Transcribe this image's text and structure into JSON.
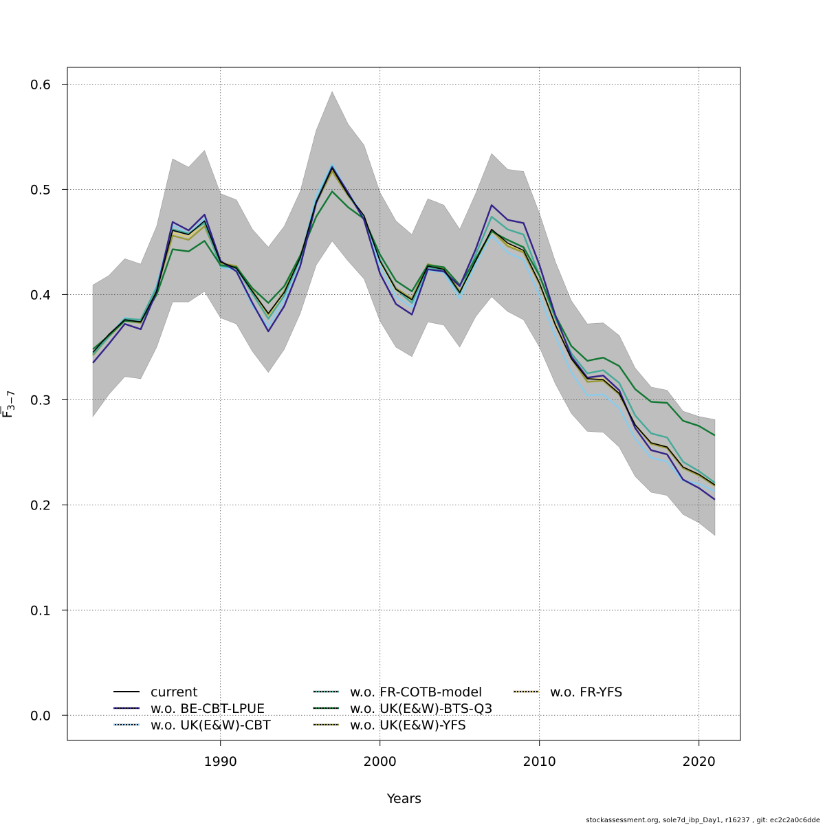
{
  "chart_data": {
    "type": "line",
    "xlabel": "Years",
    "ylabel": "F",
    "ylabel_subscript": "3−7",
    "xlim": [
      1980.4,
      2022.6
    ],
    "ylim": [
      -0.024,
      0.616
    ],
    "x_ticks": [
      1990,
      2000,
      2010,
      2020
    ],
    "y_ticks": [
      0.0,
      0.1,
      0.2,
      0.3,
      0.4,
      0.5,
      0.6
    ],
    "x_tick_labels": [
      "1990",
      "2000",
      "2010",
      "2020"
    ],
    "y_tick_labels": [
      "0.0",
      "0.1",
      "0.2",
      "0.3",
      "0.4",
      "0.5",
      "0.6"
    ],
    "grid": true,
    "legend_placement": "bottom-left",
    "x": [
      1982,
      1983,
      1984,
      1985,
      1986,
      1987,
      1988,
      1989,
      1990,
      1991,
      1992,
      1993,
      1994,
      1995,
      1996,
      1997,
      1998,
      1999,
      2000,
      2001,
      2002,
      2003,
      2004,
      2005,
      2006,
      2007,
      2008,
      2009,
      2010,
      2011,
      2012,
      2013,
      2014,
      2015,
      2016,
      2017,
      2018,
      2019,
      2020,
      2021
    ],
    "band": {
      "color": "#bebebe",
      "upper": [
        0.409,
        0.418,
        0.434,
        0.429,
        0.465,
        0.529,
        0.521,
        0.537,
        0.496,
        0.49,
        0.462,
        0.445,
        0.465,
        0.498,
        0.556,
        0.593,
        0.562,
        0.542,
        0.497,
        0.47,
        0.457,
        0.491,
        0.485,
        0.462,
        0.496,
        0.534,
        0.519,
        0.517,
        0.477,
        0.431,
        0.394,
        0.372,
        0.373,
        0.361,
        0.33,
        0.312,
        0.309,
        0.289,
        0.284,
        0.281
      ],
      "lower": [
        0.284,
        0.305,
        0.322,
        0.32,
        0.35,
        0.393,
        0.393,
        0.403,
        0.378,
        0.372,
        0.346,
        0.326,
        0.348,
        0.382,
        0.428,
        0.451,
        0.432,
        0.415,
        0.375,
        0.35,
        0.341,
        0.374,
        0.371,
        0.35,
        0.379,
        0.398,
        0.384,
        0.376,
        0.35,
        0.315,
        0.287,
        0.27,
        0.269,
        0.255,
        0.227,
        0.212,
        0.209,
        0.191,
        0.183,
        0.171
      ]
    },
    "series": [
      {
        "name": "current",
        "color": "#000000",
        "dash": "solid",
        "values": [
          0.345,
          0.362,
          0.376,
          0.374,
          0.403,
          0.461,
          0.457,
          0.47,
          0.431,
          0.425,
          0.403,
          0.382,
          0.402,
          0.435,
          0.488,
          0.52,
          0.495,
          0.475,
          0.432,
          0.405,
          0.395,
          0.427,
          0.424,
          0.402,
          0.432,
          0.462,
          0.449,
          0.442,
          0.411,
          0.371,
          0.339,
          0.32,
          0.319,
          0.306,
          0.276,
          0.259,
          0.255,
          0.236,
          0.229,
          0.219
        ]
      },
      {
        "name": "w.o. BE-CBT-LPUE",
        "color": "#332288",
        "dash": "dotted",
        "values": [
          0.335,
          0.353,
          0.372,
          0.367,
          0.403,
          0.469,
          0.461,
          0.476,
          0.432,
          0.422,
          0.392,
          0.365,
          0.389,
          0.427,
          0.487,
          0.521,
          0.497,
          0.471,
          0.42,
          0.391,
          0.381,
          0.424,
          0.422,
          0.408,
          0.443,
          0.485,
          0.471,
          0.468,
          0.428,
          0.38,
          0.341,
          0.321,
          0.323,
          0.309,
          0.273,
          0.252,
          0.248,
          0.224,
          0.216,
          0.205
        ]
      },
      {
        "name": "w.o. UK(E&W)-CBT",
        "color": "#88ccee",
        "dash": "dotted",
        "values": [
          0.343,
          0.361,
          0.378,
          0.375,
          0.409,
          0.466,
          0.458,
          0.472,
          0.426,
          0.423,
          0.389,
          0.37,
          0.395,
          0.433,
          0.494,
          0.524,
          0.497,
          0.474,
          0.427,
          0.398,
          0.388,
          0.423,
          0.421,
          0.396,
          0.429,
          0.456,
          0.44,
          0.433,
          0.399,
          0.36,
          0.326,
          0.304,
          0.305,
          0.292,
          0.263,
          0.245,
          0.241,
          0.223,
          0.22,
          0.213
        ]
      },
      {
        "name": "w.o. FR-COTB-model",
        "color": "#44aa99",
        "dash": "dotted",
        "values": [
          0.343,
          0.36,
          0.377,
          0.376,
          0.407,
          0.462,
          0.458,
          0.468,
          0.427,
          0.425,
          0.401,
          0.377,
          0.399,
          0.434,
          0.489,
          0.522,
          0.495,
          0.473,
          0.433,
          0.405,
          0.392,
          0.426,
          0.423,
          0.401,
          0.438,
          0.474,
          0.462,
          0.457,
          0.418,
          0.377,
          0.344,
          0.325,
          0.328,
          0.316,
          0.285,
          0.268,
          0.264,
          0.241,
          0.232,
          0.221
        ]
      },
      {
        "name": "w.o. UK(E&W)-BTS-Q3",
        "color": "#117733",
        "dash": "dotted",
        "values": [
          0.348,
          0.361,
          0.375,
          0.374,
          0.4,
          0.443,
          0.441,
          0.451,
          0.428,
          0.426,
          0.406,
          0.392,
          0.408,
          0.437,
          0.474,
          0.498,
          0.483,
          0.472,
          0.438,
          0.413,
          0.403,
          0.428,
          0.426,
          0.409,
          0.434,
          0.46,
          0.452,
          0.445,
          0.418,
          0.38,
          0.351,
          0.337,
          0.34,
          0.332,
          0.31,
          0.298,
          0.297,
          0.28,
          0.275,
          0.266
        ]
      },
      {
        "name": "w.o. UK(E&W)-YFS",
        "color": "#999933",
        "dash": "dotted",
        "values": [
          0.342,
          0.36,
          0.375,
          0.373,
          0.405,
          0.456,
          0.452,
          0.465,
          0.43,
          0.427,
          0.404,
          0.381,
          0.403,
          0.436,
          0.487,
          0.517,
          0.494,
          0.474,
          0.433,
          0.406,
          0.396,
          0.429,
          0.425,
          0.403,
          0.431,
          0.461,
          0.446,
          0.44,
          0.41,
          0.371,
          0.339,
          0.317,
          0.318,
          0.305,
          0.276,
          0.258,
          0.254,
          0.235,
          0.228,
          0.218
        ]
      },
      {
        "name": "w.o. FR-YFS",
        "color": "#ddcc77",
        "dash": "dotted",
        "values": [
          0.344,
          0.361,
          0.376,
          0.374,
          0.406,
          0.459,
          0.455,
          0.468,
          0.431,
          0.426,
          0.402,
          0.38,
          0.401,
          0.435,
          0.488,
          0.519,
          0.495,
          0.474,
          0.431,
          0.404,
          0.394,
          0.427,
          0.424,
          0.401,
          0.431,
          0.46,
          0.448,
          0.441,
          0.411,
          0.372,
          0.34,
          0.32,
          0.32,
          0.306,
          0.276,
          0.259,
          0.255,
          0.236,
          0.229,
          0.219
        ]
      }
    ]
  },
  "footer": "stockassessment.org, sole7d_ibp_Day1, r16237 , git: ec2c2a0c6dde"
}
